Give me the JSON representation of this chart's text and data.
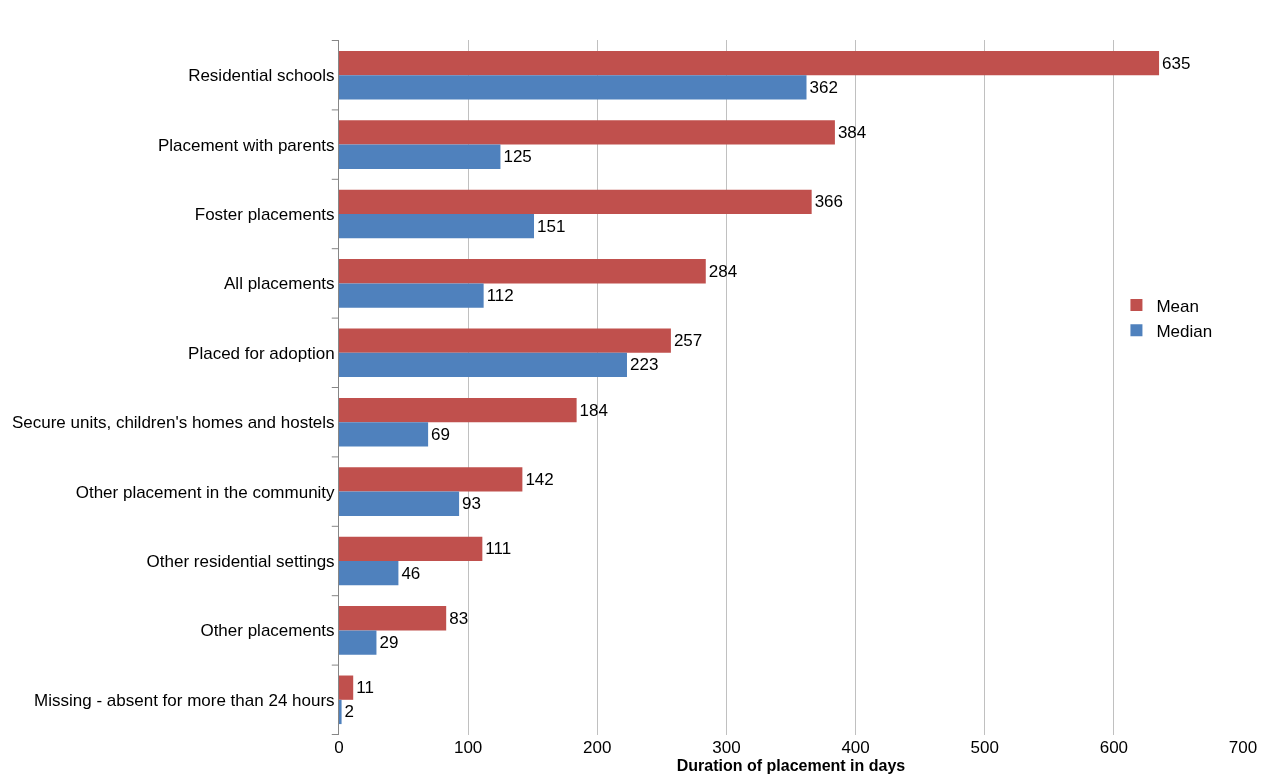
{
  "chart_data": {
    "type": "bar",
    "orientation": "horizontal",
    "xlabel": "Duration of placement in days",
    "categories": [
      "Residential schools",
      "Placement with parents",
      "Foster placements",
      "All placements",
      "Placed for adoption",
      "Secure units, children's homes and hostels",
      "Other placement in the community",
      "Other residential settings",
      "Other placements",
      "Missing - absent for more than 24 hours"
    ],
    "series": [
      {
        "name": "Mean",
        "color": "#c0504d",
        "values": [
          635,
          384,
          366,
          284,
          257,
          184,
          142,
          111,
          83,
          11
        ]
      },
      {
        "name": "Median",
        "color": "#4f81bd",
        "values": [
          362,
          125,
          151,
          112,
          223,
          69,
          93,
          46,
          29,
          2
        ]
      }
    ],
    "xlim": [
      0,
      700
    ],
    "xticks": [
      0,
      100,
      200,
      300,
      400,
      500,
      600,
      700
    ],
    "grid": "x",
    "legend": "right",
    "data_labels": true
  }
}
